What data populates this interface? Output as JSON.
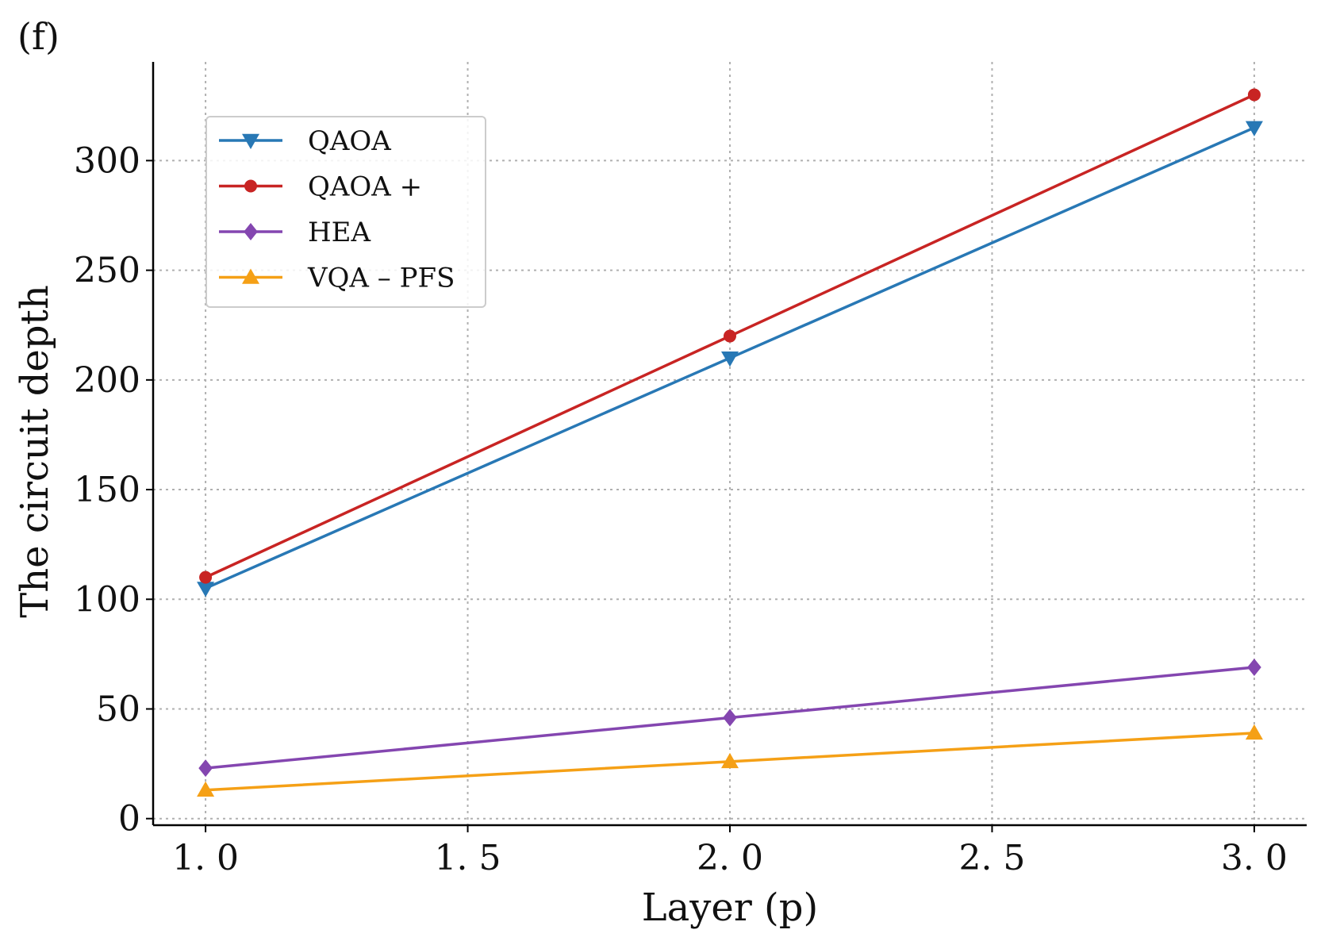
{
  "panel_label": "(f)",
  "chart_data": {
    "type": "line",
    "title": "",
    "xlabel": "Layer (p)",
    "ylabel": "The circuit depth",
    "xlim": [
      0.9,
      3.1
    ],
    "ylim": [
      -3,
      345
    ],
    "xticks": [
      1.0,
      1.5,
      2.0,
      2.5,
      3.0
    ],
    "xtick_labels": [
      "1. 0",
      "1. 5",
      "2. 0",
      "2. 5",
      "3. 0"
    ],
    "yticks": [
      0,
      50,
      100,
      150,
      200,
      250,
      300
    ],
    "ytick_labels": [
      "0",
      "50",
      "100",
      "150",
      "200",
      "250",
      "300"
    ],
    "grid": true,
    "legend_position": "top-left",
    "x": [
      1.0,
      2.0,
      3.0
    ],
    "series": [
      {
        "name": "QAOA",
        "values": [
          105,
          210,
          315
        ],
        "color": "#2878b5",
        "marker": "triangle-down"
      },
      {
        "name": "QAOA +",
        "values": [
          110,
          220,
          330
        ],
        "color": "#c82423",
        "marker": "circle"
      },
      {
        "name": "HEA",
        "values": [
          23,
          46,
          69
        ],
        "color": "#8446b0",
        "marker": "diamond"
      },
      {
        "name": "VQA – PFS",
        "values": [
          13,
          26,
          39
        ],
        "color": "#f5a016",
        "marker": "triangle-up"
      }
    ]
  }
}
